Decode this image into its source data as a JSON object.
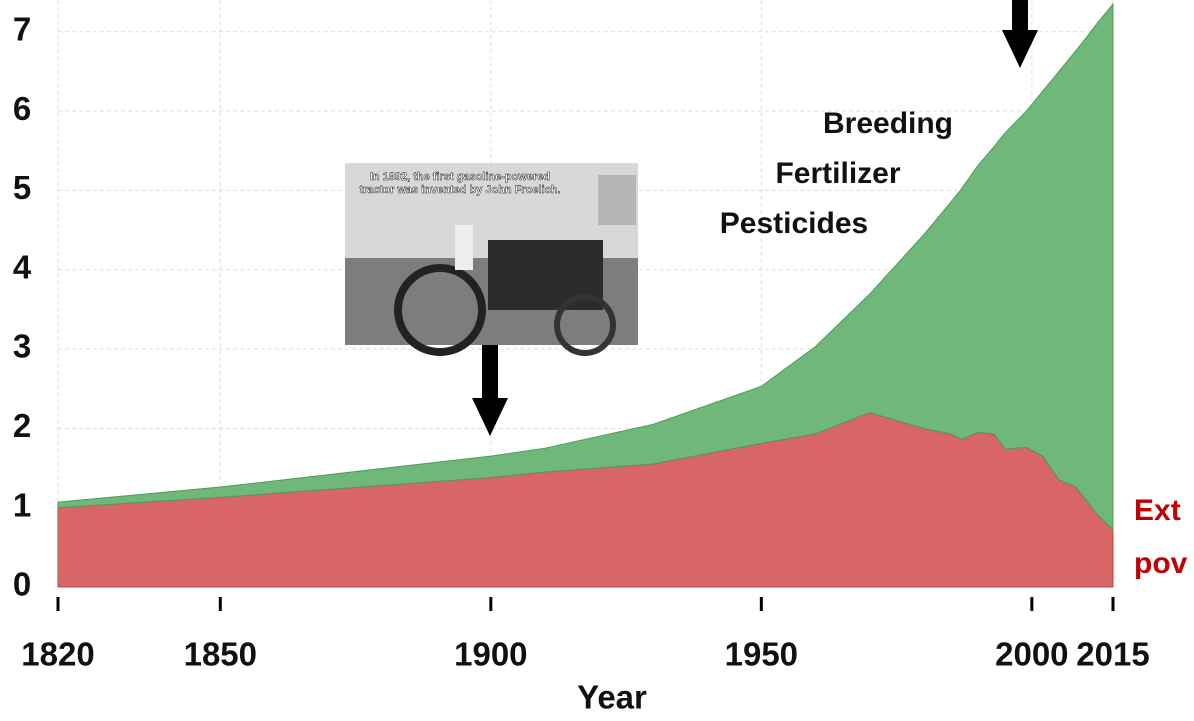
{
  "chart_data": {
    "type": "area",
    "stacked": true,
    "x": [
      1820,
      1850,
      1900,
      1910,
      1930,
      1950,
      1960,
      1970,
      1980,
      1985,
      1987,
      1990,
      1993,
      1995,
      1999,
      2002,
      2005,
      2008,
      2010,
      2012,
      2015
    ],
    "series": [
      {
        "color": "#d96666",
        "values": [
          1.0,
          1.13,
          1.38,
          1.45,
          1.55,
          1.81,
          1.93,
          2.2,
          2.0,
          1.93,
          1.86,
          1.95,
          1.93,
          1.74,
          1.76,
          1.65,
          1.35,
          1.27,
          1.1,
          0.92,
          0.72
        ]
      },
      {
        "color": "#70b77a",
        "values": [
          0.07,
          0.13,
          0.27,
          0.3,
          0.5,
          0.72,
          1.1,
          1.49,
          2.44,
          2.92,
          3.16,
          3.36,
          3.62,
          3.98,
          4.24,
          4.6,
          5.15,
          5.48,
          5.82,
          6.18,
          6.63
        ]
      }
    ],
    "xlim": [
      1820,
      2015
    ],
    "xticks": [
      1820,
      1850,
      1900,
      1950,
      2000,
      2015
    ],
    "ylim": [
      0,
      7.4
    ],
    "yticks": [
      0,
      1,
      2,
      3,
      4,
      5,
      6,
      7
    ],
    "xlabel": "Year",
    "grid": true,
    "annotations": [
      "Breeding",
      "Fertilizer",
      "Pesticides",
      "Ext",
      "pov"
    ],
    "photo_caption": [
      "In 1892, the first gasoline-powered",
      "tractor was invented by John Froelich."
    ]
  }
}
